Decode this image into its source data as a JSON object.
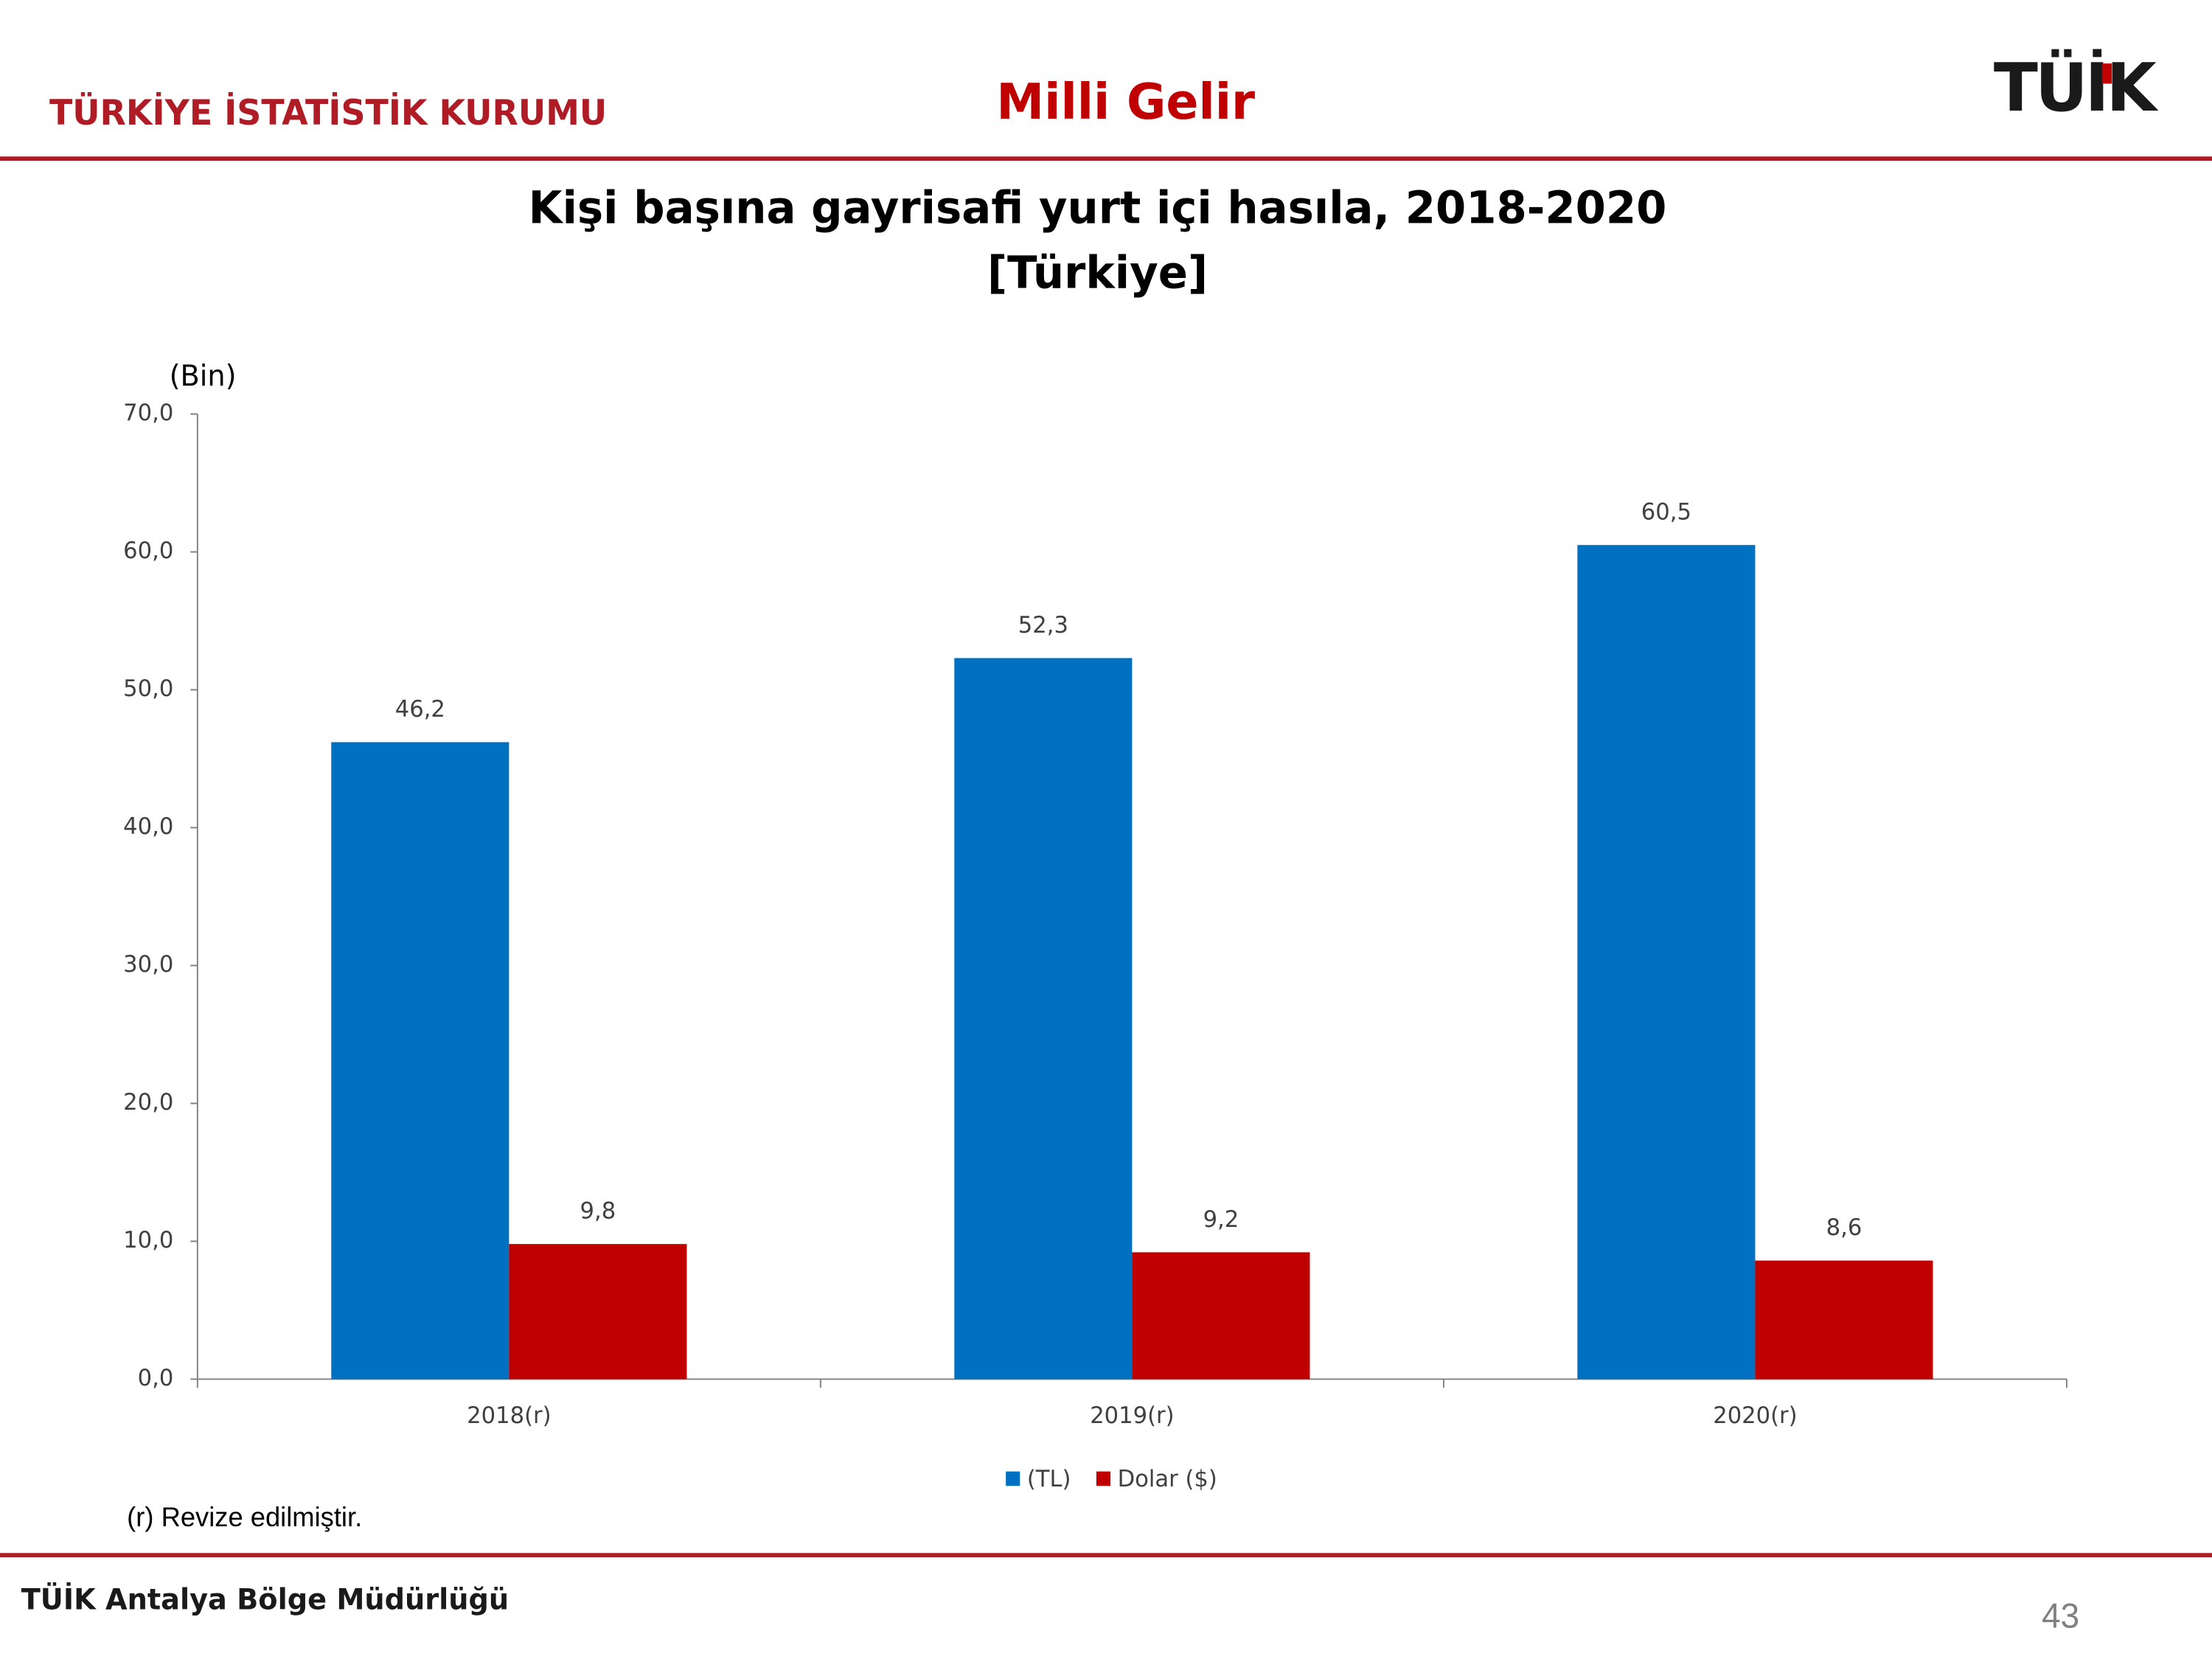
{
  "header": {
    "organization": "TÜRKİYE İSTATİSTİK KURUMU",
    "section": "Milli Gelir",
    "logo": "TÜİK"
  },
  "chart_data": {
    "type": "bar",
    "title": "Kişi başına gayrisafi yurt içi hasıla, 2018-2020",
    "subtitle": "[Türkiye]",
    "y_label": "(Bin)",
    "categories": [
      "2018(r)",
      "2019(r)",
      "2020(r)"
    ],
    "series": [
      {
        "name": "(TL)",
        "color": "#0070c0",
        "values": [
          46.2,
          52.3,
          60.5
        ],
        "value_labels": [
          "46,2",
          "52,3",
          "60,5"
        ]
      },
      {
        "name": "Dolar ($)",
        "color": "#c00000",
        "values": [
          9.8,
          9.2,
          8.6
        ],
        "value_labels": [
          "9,8",
          "9,2",
          "8,6"
        ]
      }
    ],
    "ylim": [
      0,
      70
    ],
    "yticks": [
      {
        "value": 0,
        "label": "0,0"
      },
      {
        "value": 10,
        "label": "10,0"
      },
      {
        "value": 20,
        "label": "20,0"
      },
      {
        "value": 30,
        "label": "30,0"
      },
      {
        "value": 40,
        "label": "40,0"
      },
      {
        "value": 50,
        "label": "50,0"
      },
      {
        "value": 60,
        "label": "60,0"
      },
      {
        "value": 70,
        "label": "70,0"
      }
    ],
    "legend": "bottom",
    "note": "(r) Revize edilmiştir."
  },
  "footer": {
    "office": "TÜİK Antalya Bölge Müdürlüğü",
    "page": "43"
  }
}
